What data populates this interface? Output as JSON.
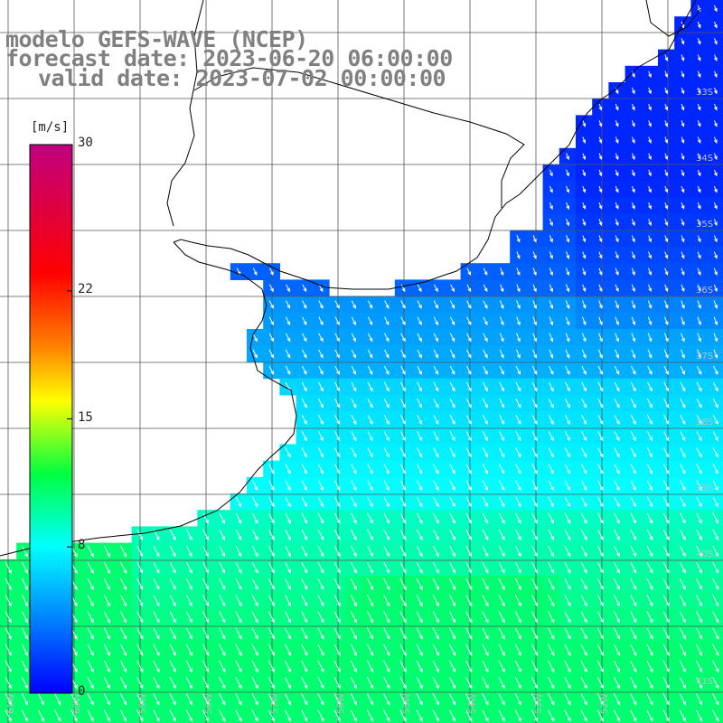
{
  "title": {
    "line1": "modelo GEFS-WAVE (NCEP)",
    "line2": "forecast date: 2023-06-20 06:00:00",
    "line3": "valid date: 2023-07-02 00:00:00"
  },
  "colorbar": {
    "unit": "[m/s]",
    "ticks": [
      {
        "value": 30,
        "label": "30"
      },
      {
        "value": 22,
        "label": "22"
      },
      {
        "value": 15,
        "label": "15"
      },
      {
        "value": 8,
        "label": "8"
      },
      {
        "value": 0,
        "label": "0"
      }
    ],
    "range": [
      0,
      30
    ],
    "stops": [
      {
        "v": 0,
        "color": "#0000ff"
      },
      {
        "v": 4,
        "color": "#0080ff"
      },
      {
        "v": 8,
        "color": "#00ffff"
      },
      {
        "v": 12,
        "color": "#00ff40"
      },
      {
        "v": 16,
        "color": "#ffff00"
      },
      {
        "v": 19,
        "color": "#ff8000"
      },
      {
        "v": 23,
        "color": "#ff0000"
      },
      {
        "v": 30,
        "color": "#c00080"
      }
    ]
  },
  "map": {
    "lat_labels": [
      "33S",
      "34S",
      "35S",
      "36S",
      "37S",
      "38S",
      "39S",
      "40S",
      "41S"
    ],
    "lon_labels": [
      "61W",
      "60W",
      "59W",
      "58W",
      "57W",
      "56W",
      "55W",
      "54W",
      "53W",
      "52W"
    ],
    "grid_color": "#555555",
    "land_color": "#ffffff",
    "coastline_color": "#000000",
    "arrow_color": "#ffffff",
    "field_description_colors": {
      "near_coast": "#0050ff",
      "offshore": "#00d0ff",
      "south": "#00ff80"
    }
  }
}
